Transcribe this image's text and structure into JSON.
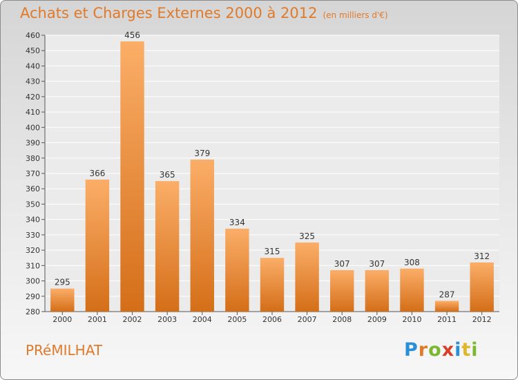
{
  "title": "Achats et Charges Externes 2000 à 2012",
  "unit": "(en milliers d'€)",
  "commune": "PRéMILHAT",
  "logo": {
    "letters": [
      "P",
      "r",
      "o",
      "x",
      "i",
      "t",
      "i"
    ],
    "colors": [
      "#2a8fd6",
      "#e07a2a",
      "#7bb72f",
      "#d6402a",
      "#2a8fd6",
      "#e0b62a",
      "#7bb72f"
    ]
  },
  "colors": {
    "accent": "#e07a2a",
    "bar_light": "#fbae68",
    "bar_dark": "#d46e18"
  },
  "chart_data": {
    "type": "bar",
    "title": "Achats et Charges Externes 2000 à 2012",
    "subtitle": "(en milliers d'€)",
    "categories": [
      "2000",
      "2001",
      "2002",
      "2003",
      "2004",
      "2005",
      "2006",
      "2007",
      "2008",
      "2009",
      "2010",
      "2011",
      "2012"
    ],
    "values": [
      295,
      366,
      456,
      365,
      379,
      334,
      315,
      325,
      307,
      307,
      308,
      287,
      312
    ],
    "ylim": [
      280,
      460
    ],
    "ytick_step": 10,
    "yticks": [
      "280",
      "290",
      "300",
      "310",
      "320",
      "330",
      "340",
      "350",
      "360",
      "370",
      "380",
      "390",
      "400",
      "410",
      "420",
      "430",
      "440",
      "450",
      "460"
    ],
    "grid": true,
    "legend": "none"
  }
}
